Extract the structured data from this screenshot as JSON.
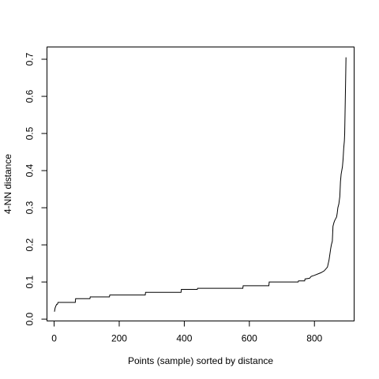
{
  "chart_data": {
    "type": "line",
    "title": "",
    "xlabel": "Points (sample) sorted by distance",
    "ylabel": "4-NN distance",
    "xlim": [
      -22,
      922
    ],
    "ylim": [
      -0.005,
      0.733
    ],
    "x_ticks": [
      0,
      200,
      400,
      600,
      800
    ],
    "x_tick_labels": [
      "0",
      "200",
      "400",
      "600",
      "800"
    ],
    "y_ticks": [
      0.0,
      0.1,
      0.2,
      0.3,
      0.4,
      0.5,
      0.6,
      0.7
    ],
    "y_tick_labels": [
      "0.0",
      "0.1",
      "0.2",
      "0.3",
      "0.4",
      "0.5",
      "0.6",
      "0.7"
    ],
    "grid": false,
    "legend": "none",
    "line_color": "#000000",
    "series": [
      {
        "x": [
          1,
          2,
          3,
          5,
          8,
          10,
          12,
          15,
          65,
          66,
          110,
          111,
          170,
          171,
          280,
          281,
          390,
          391,
          440,
          441,
          580,
          581,
          660,
          661,
          750,
          751,
          770,
          771,
          785,
          790,
          800,
          820,
          830,
          840,
          845,
          850,
          852,
          855,
          857,
          860,
          862,
          865,
          868,
          870,
          872,
          875,
          878,
          880,
          882,
          884,
          886,
          888,
          890,
          892,
          893,
          894,
          895,
          896,
          897
        ],
        "y": [
          0.02,
          0.025,
          0.03,
          0.035,
          0.04,
          0.04,
          0.045,
          0.045,
          0.045,
          0.055,
          0.055,
          0.06,
          0.06,
          0.065,
          0.065,
          0.072,
          0.072,
          0.08,
          0.08,
          0.083,
          0.083,
          0.09,
          0.09,
          0.1,
          0.1,
          0.103,
          0.103,
          0.108,
          0.11,
          0.115,
          0.118,
          0.125,
          0.13,
          0.14,
          0.16,
          0.19,
          0.2,
          0.21,
          0.25,
          0.26,
          0.265,
          0.27,
          0.275,
          0.285,
          0.3,
          0.31,
          0.33,
          0.37,
          0.39,
          0.4,
          0.41,
          0.43,
          0.46,
          0.48,
          0.5,
          0.55,
          0.6,
          0.65,
          0.705
        ]
      }
    ]
  }
}
